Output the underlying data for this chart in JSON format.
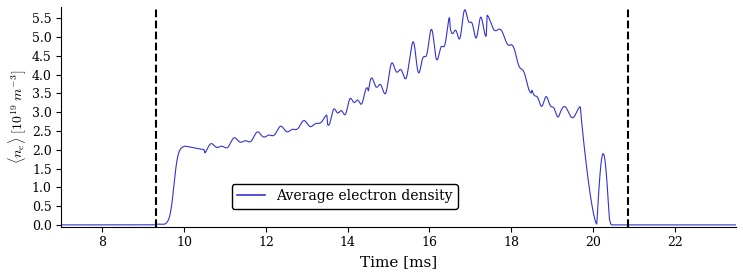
{
  "title": "",
  "xlabel": "Time [ms]",
  "ylabel": "$\\langle n_e \\rangle \\ [10^{19}\\ m^{-3}]$",
  "xlim": [
    7,
    23.5
  ],
  "ylim": [
    -0.05,
    5.8
  ],
  "yticks": [
    0.0,
    0.5,
    1.0,
    1.5,
    2.0,
    2.5,
    3.0,
    3.5,
    4.0,
    4.5,
    5.0,
    5.5
  ],
  "xticks": [
    8,
    10,
    12,
    14,
    16,
    18,
    20,
    22
  ],
  "line_color": "#3333cc",
  "vline1": 9.3,
  "vline2": 20.85,
  "legend_label": "Average electron density",
  "figsize": [
    7.43,
    2.76
  ],
  "dpi": 100
}
